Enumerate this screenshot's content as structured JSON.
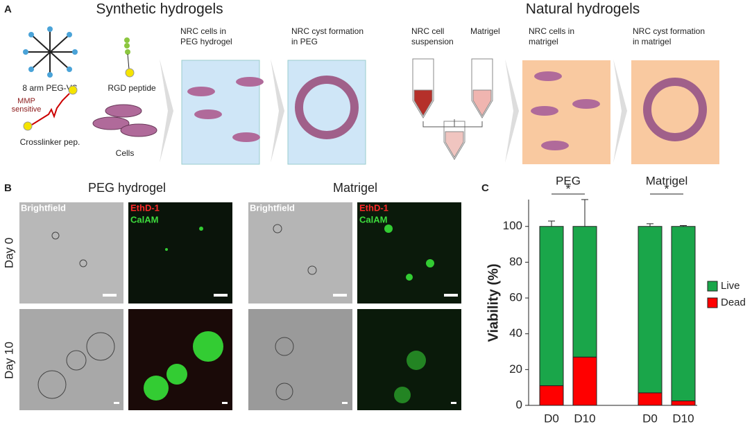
{
  "panel_a": {
    "letter": "A",
    "synthetic_title": "Synthetic hydrogels",
    "natural_title": "Natural hydrogels",
    "peg": "8 arm PEG-VS",
    "rgd": "RGD peptide",
    "mmp": [
      "MMP",
      "sensitive"
    ],
    "crosslinker": "Crosslinker pep.",
    "cells": "Cells",
    "peg_cells": [
      "NRC cells in",
      "PEG  hydrogel"
    ],
    "peg_cyst": [
      "NRC cyst formation",
      "in PEG"
    ],
    "suspension": [
      "NRC cell",
      "suspension"
    ],
    "matrigel": "Matrigel",
    "mat_cells": [
      "NRC cells in",
      "matrigel"
    ],
    "mat_cyst": [
      "NRC cyst formation",
      "in matrigel"
    ]
  },
  "panel_b": {
    "letter": "B",
    "peg_title": "PEG hydrogel",
    "mat_title": "Matrigel",
    "day0": "Day 0",
    "day10": "Day 10",
    "brightfield": "Brightfield",
    "ethd": "EthD-1",
    "calam": "CalAM"
  },
  "chart_data": {
    "type": "bar",
    "letter": "C",
    "stacked": true,
    "groups": [
      "PEG",
      "Matrigel"
    ],
    "significance": [
      "*",
      "*"
    ],
    "categories": [
      "D0",
      "D10",
      "D0",
      "D10"
    ],
    "series": [
      {
        "name": "Dead",
        "color": "#ff0000",
        "values": [
          11,
          27,
          7,
          2.5
        ],
        "errors": [
          3,
          15,
          2,
          0.5
        ]
      },
      {
        "name": "Live",
        "color": "#1aa64a",
        "values": [
          89,
          73,
          93,
          97.5
        ],
        "errors": [
          3,
          15,
          1.5,
          0.5
        ]
      }
    ],
    "y_label": "Viability (%)",
    "ylim": [
      0,
      115
    ],
    "yticks": [
      0,
      20,
      40,
      60,
      80,
      100
    ],
    "legend": "right"
  }
}
